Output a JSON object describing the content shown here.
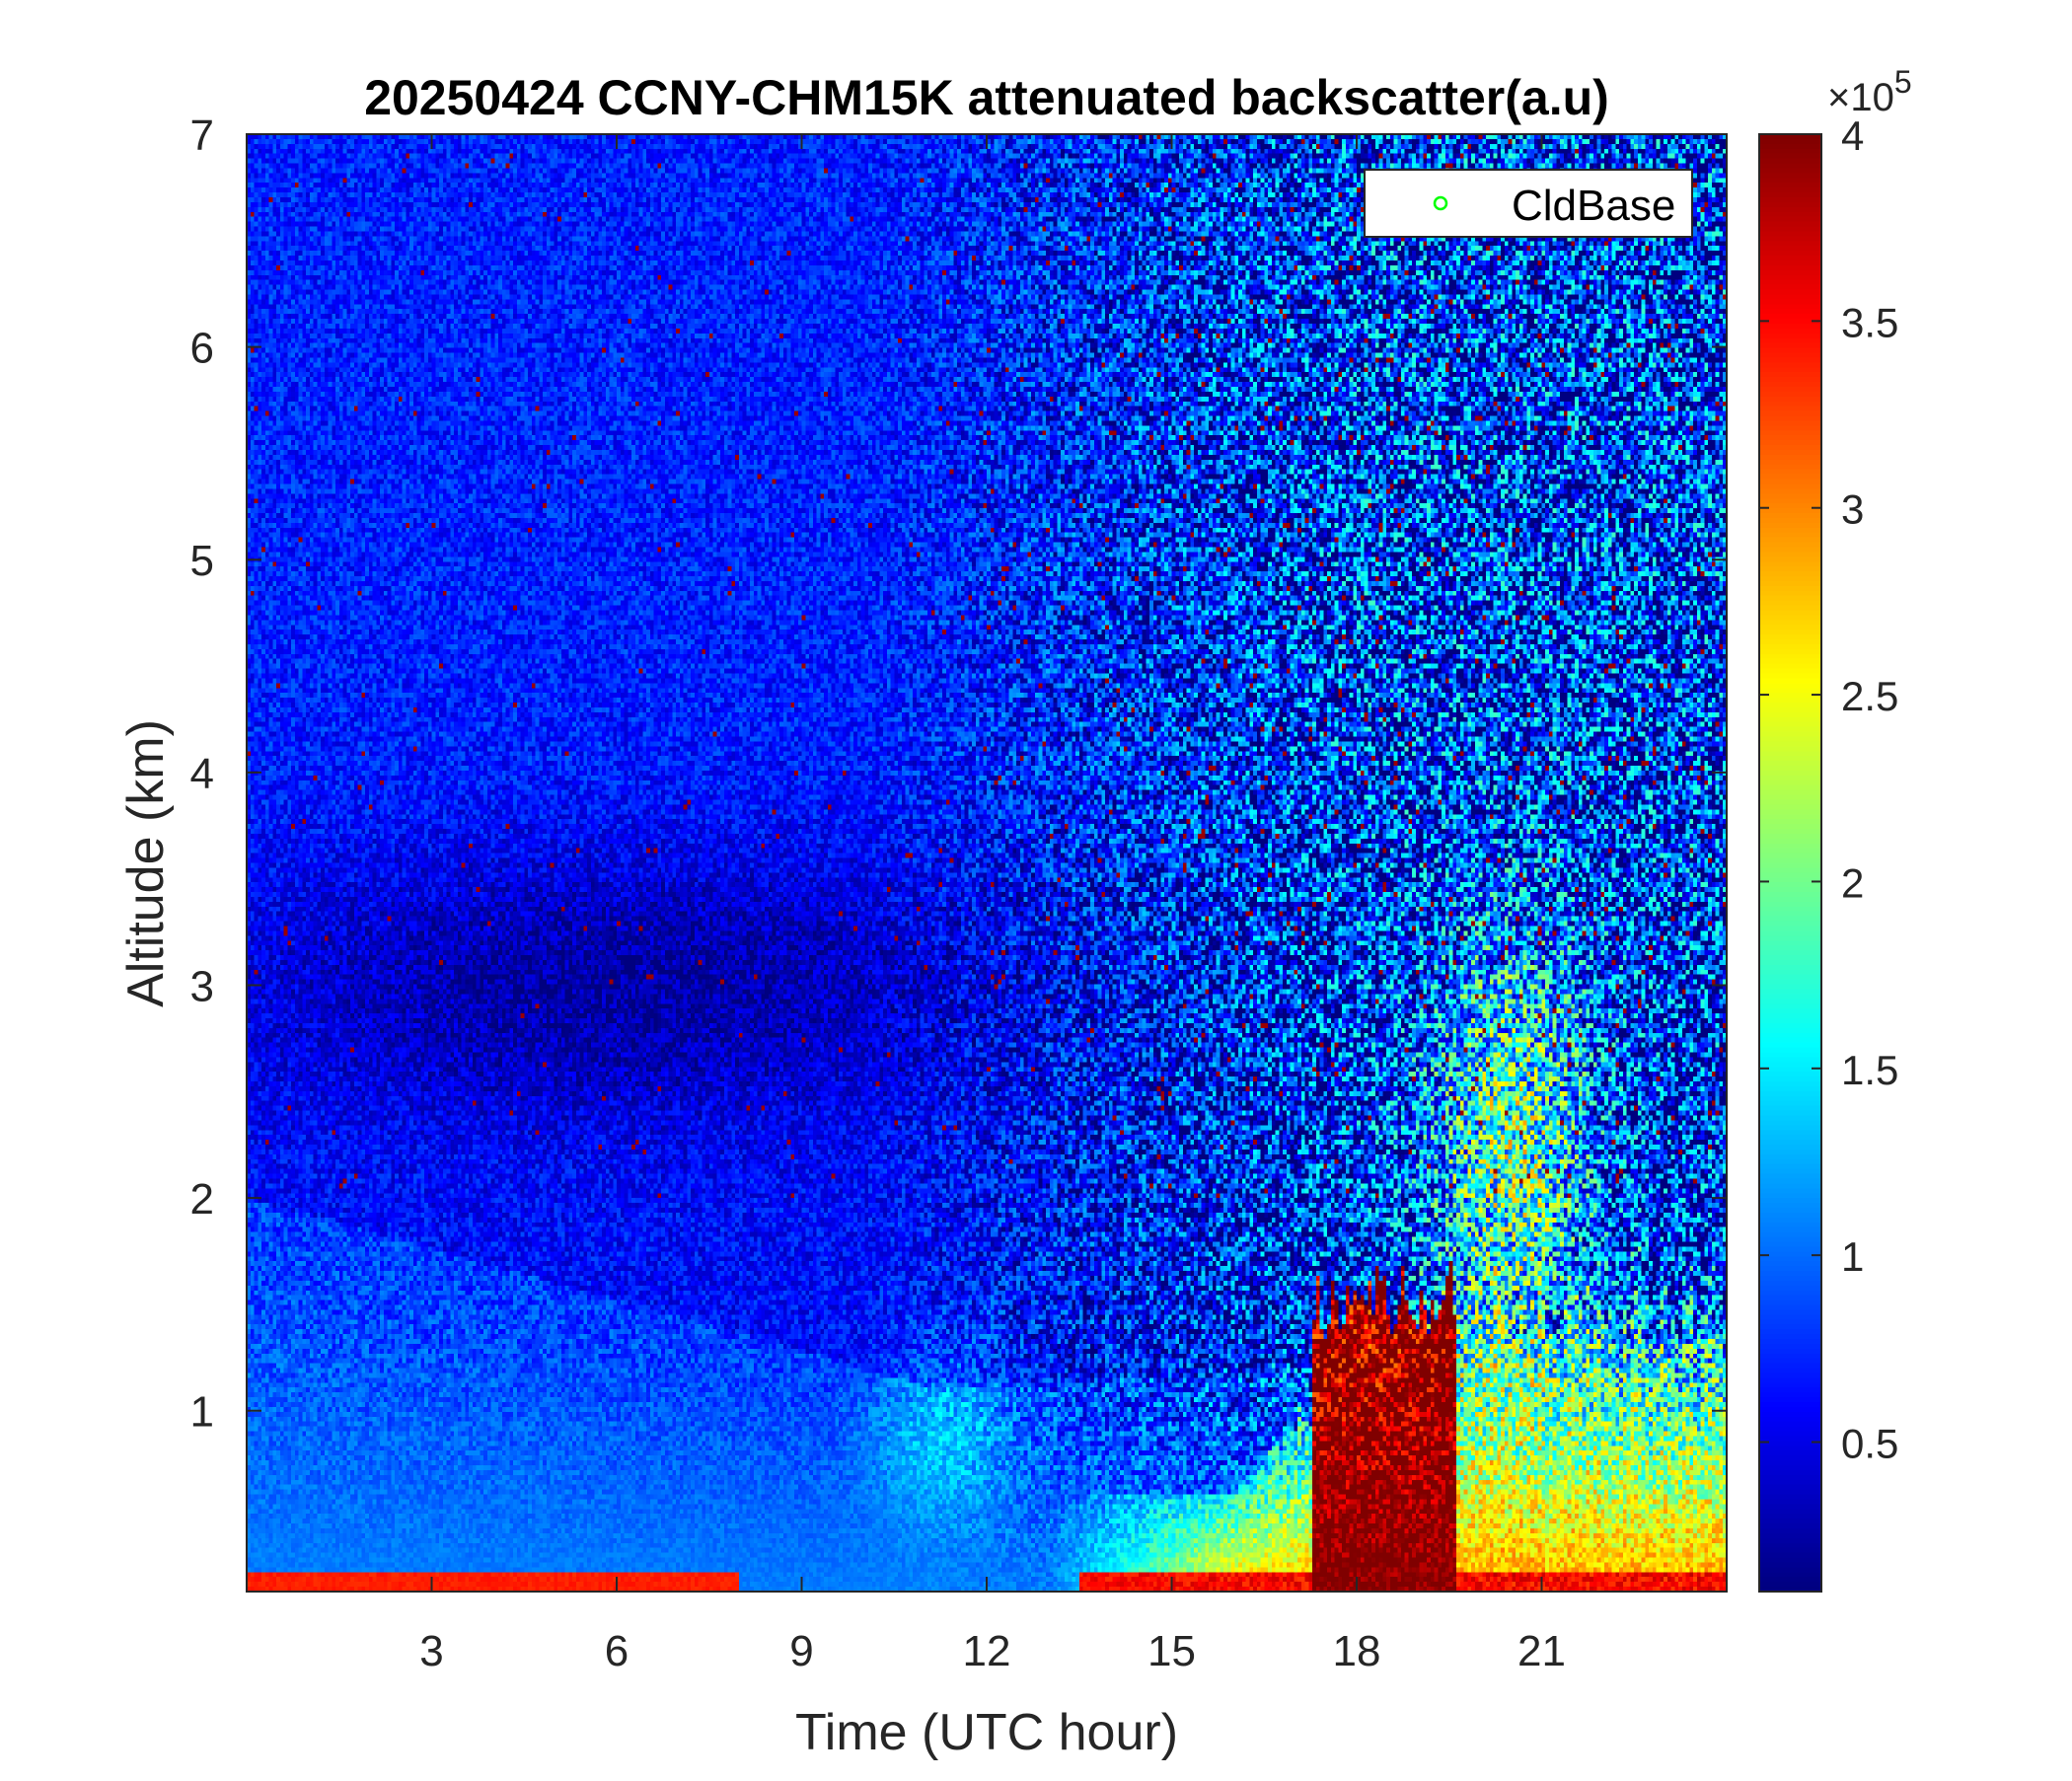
{
  "chart_data": {
    "type": "heatmap",
    "title": "20250424 CCNY-CHM15K attenuated backscatter(a.u)",
    "xlabel": "Time (UTC hour)",
    "ylabel": "Altitude (km)",
    "xlim": [
      0,
      24
    ],
    "ylim": [
      0.15,
      7
    ],
    "xticks": [
      3,
      6,
      9,
      12,
      15,
      18,
      21
    ],
    "yticks": [
      1,
      2,
      3,
      4,
      5,
      6,
      7
    ],
    "colorbar": {
      "colormap": "jet",
      "clim": [
        0.1,
        4
      ],
      "ticks": [
        0.5,
        1,
        1.5,
        2,
        2.5,
        3,
        3.5,
        4
      ],
      "multiplier_base": "×10",
      "multiplier_exponent": "5"
    },
    "legend": {
      "position": "top-right",
      "entries": [
        {
          "name": "CldBase",
          "marker": "open-circle",
          "color": "#00ff00"
        }
      ]
    },
    "notes_grid": "off",
    "colors": {
      "low": "#00008f",
      "high": "#800000",
      "axis": "#262626"
    }
  }
}
